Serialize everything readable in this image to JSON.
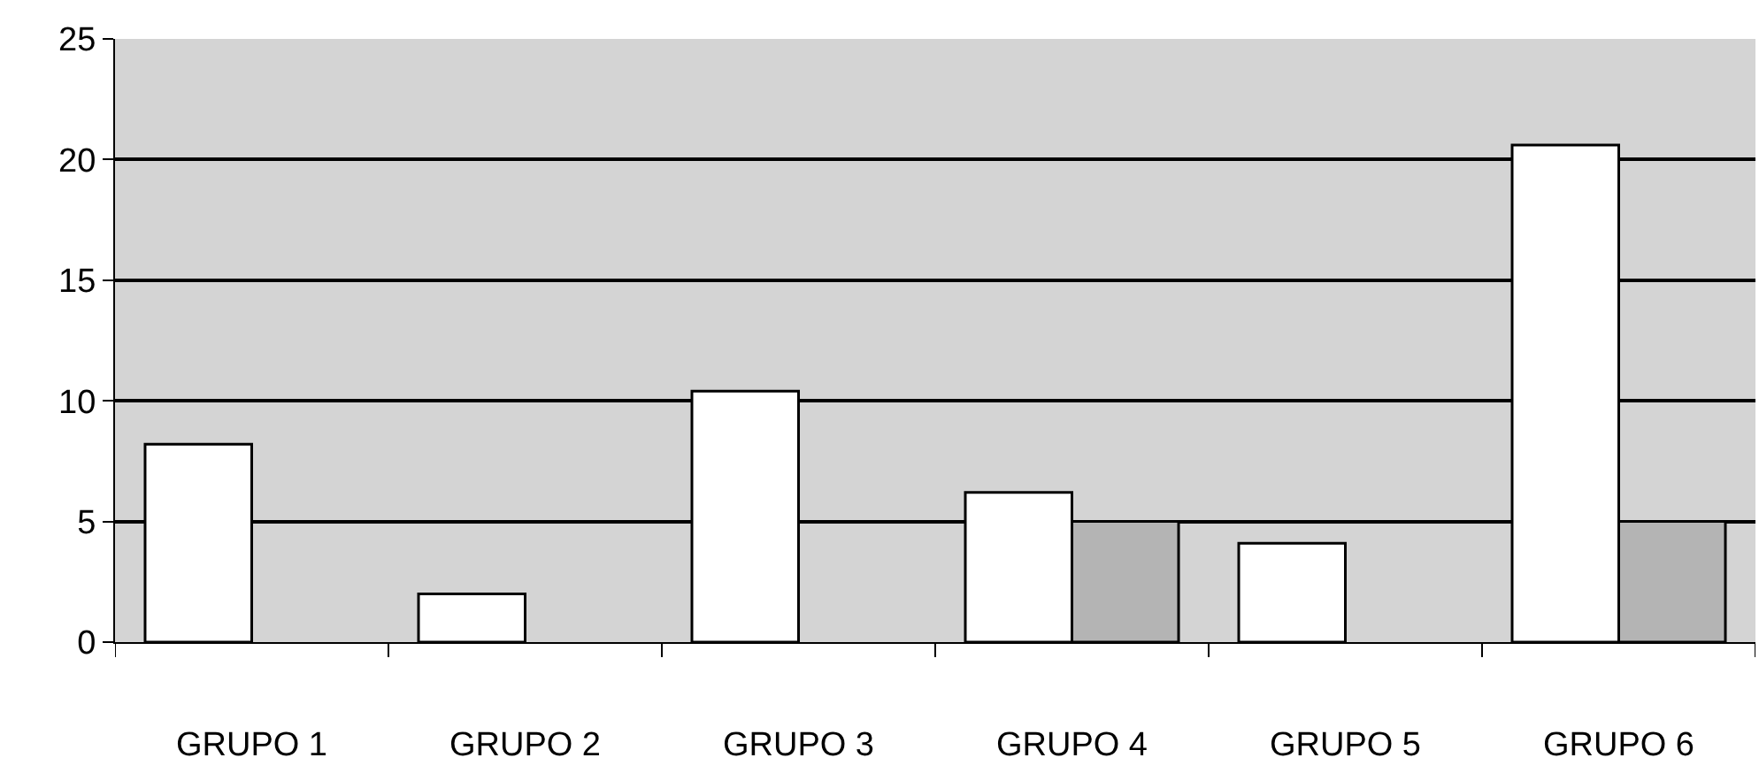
{
  "chart_data": {
    "type": "bar",
    "categories": [
      "GRUPO 1",
      "GRUPO 2",
      "GRUPO 3",
      "GRUPO 4",
      "GRUPO 5",
      "GRUPO 6"
    ],
    "series": [
      {
        "color": "#ffffff",
        "values": [
          8.2,
          2,
          10.4,
          6.2,
          4.1,
          20.6
        ]
      },
      {
        "color": "#b4b4b4",
        "values": [
          null,
          null,
          null,
          5,
          null,
          5
        ]
      }
    ],
    "ylim": [
      0,
      25
    ],
    "yticks": [
      0,
      5,
      10,
      15,
      20,
      25
    ],
    "grid": "y"
  }
}
